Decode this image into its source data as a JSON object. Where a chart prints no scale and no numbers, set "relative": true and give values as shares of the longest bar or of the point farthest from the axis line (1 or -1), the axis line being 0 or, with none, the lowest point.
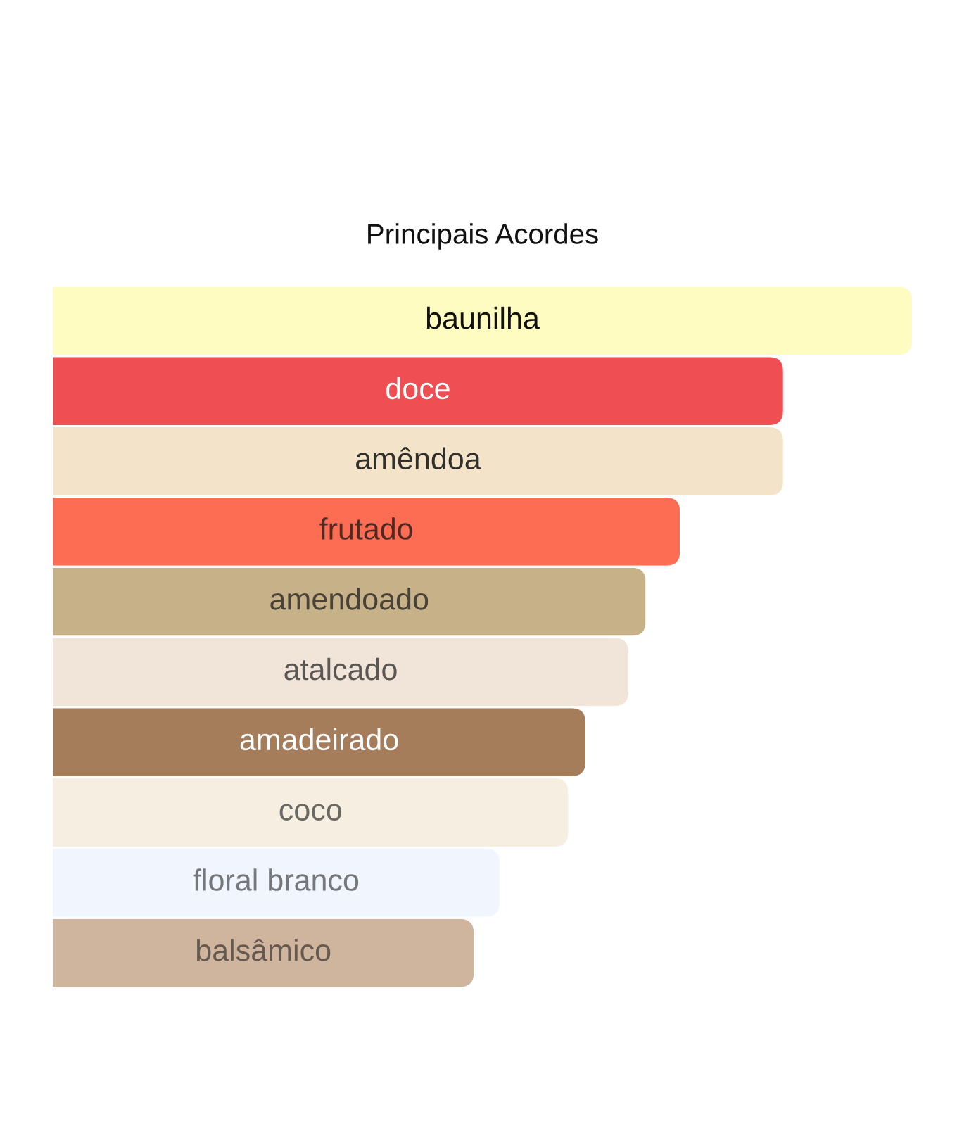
{
  "chart_data": {
    "type": "bar",
    "orientation": "horizontal",
    "relative": true,
    "title": "Principais Acordes",
    "categories": [
      "baunilha",
      "doce",
      "amêndoa",
      "frutado",
      "amendoado",
      "atalcado",
      "amadeirado",
      "coco",
      "floral branco",
      "balsâmico"
    ],
    "values": [
      1,
      0.85,
      0.85,
      0.73,
      0.69,
      0.67,
      0.62,
      0.6,
      0.52,
      0.49
    ],
    "colors": [
      "#fefcc0",
      "#ef4e53",
      "#f3e3c9",
      "#fd6d53",
      "#c7b189",
      "#f1e5da",
      "#a57d5b",
      "#f5eee1",
      "#f1f5fe",
      "#cfb59e"
    ]
  }
}
